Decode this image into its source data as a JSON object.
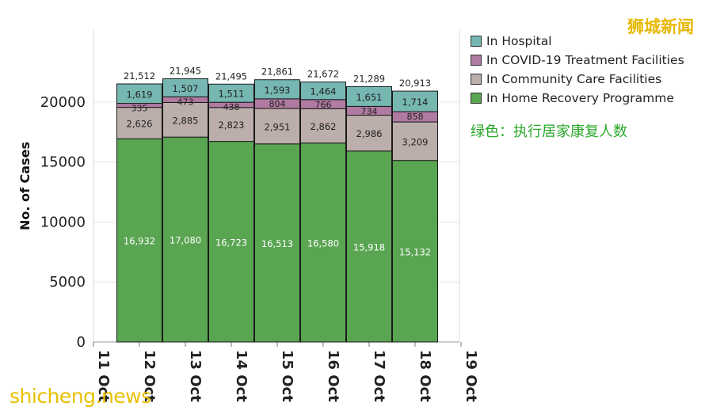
{
  "chart_data": {
    "type": "bar",
    "stacked": true,
    "categories": [
      "12 Oct",
      "13 Oct",
      "14 Oct",
      "15 Oct",
      "16 Oct",
      "17 Oct",
      "18 Oct"
    ],
    "x_ticks": [
      "11 Oct",
      "12 Oct",
      "13 Oct",
      "14 Oct",
      "15 Oct",
      "16 Oct",
      "17 Oct",
      "18 Oct",
      "19 Oct"
    ],
    "series": [
      {
        "name": "In Home Recovery Programme",
        "color": "#5aa552",
        "values": [
          16932,
          17080,
          16723,
          16513,
          16580,
          15918,
          15132
        ],
        "labels": [
          "16,932",
          "17,080",
          "16,723",
          "16,513",
          "16,580",
          "15,918",
          "15,132"
        ]
      },
      {
        "name": "In Community Care Facilities",
        "color": "#bcaeaa",
        "values": [
          2626,
          2885,
          2823,
          2951,
          2862,
          2986,
          3209
        ],
        "labels": [
          "2,626",
          "2,885",
          "2,823",
          "2,951",
          "2,862",
          "2,986",
          "3,209"
        ]
      },
      {
        "name": "In COVID-19 Treatment Facilities",
        "color": "#b07aa1",
        "values": [
          335,
          473,
          438,
          804,
          766,
          734,
          858
        ],
        "labels": [
          "335",
          "473",
          "438",
          "804",
          "766",
          "734",
          "858"
        ]
      },
      {
        "name": "In Hospital",
        "color": "#76b7b2",
        "values": [
          1619,
          1507,
          1511,
          1593,
          1464,
          1651,
          1714
        ],
        "labels": [
          "1,619",
          "1,507",
          "1,511",
          "1,593",
          "1,464",
          "1,651",
          "1,714"
        ]
      }
    ],
    "totals": [
      "21,512",
      "21,945",
      "21,495",
      "21,861",
      "21,672",
      "21,289",
      "20,913"
    ],
    "ylabel": "No. of Cases",
    "xlabel": "",
    "y_ticks": [
      0,
      5000,
      10000,
      15000,
      20000
    ],
    "ylim": [
      0,
      26000
    ],
    "grid": true,
    "legend_position": "right",
    "legend": [
      "In Hospital",
      "In COVID-19 Treatment Facilities",
      "In Community Care Facilities",
      "In Home Recovery Programme"
    ]
  },
  "annotation": {
    "note": "绿色：执行居家康复人数"
  },
  "watermarks": {
    "top_right": "狮城新闻",
    "bottom_left": "shicheng.news"
  }
}
